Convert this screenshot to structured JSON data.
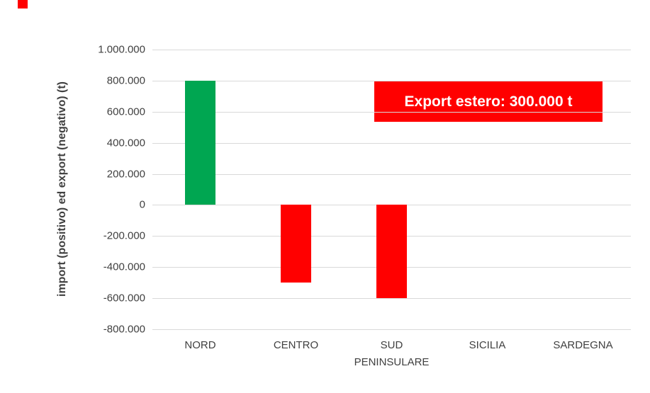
{
  "chart_data": {
    "type": "bar",
    "title": "",
    "xlabel": "",
    "ylabel": "import (positivo) ed export (negativo) (t)",
    "categories": [
      "NORD",
      "CENTRO",
      "SUD PENINSULARE",
      "SICILIA",
      "SARDEGNA"
    ],
    "values": [
      800000,
      -500000,
      -600000,
      0,
      0
    ],
    "bar_colors": [
      "#00a651",
      "#ff0000",
      "#ff0000",
      "#ff0000",
      "#ff0000"
    ],
    "ylim": [
      -800000,
      1000000
    ],
    "yticks": [
      1000000,
      800000,
      600000,
      400000,
      200000,
      0,
      -200000,
      -400000,
      -600000,
      -800000
    ],
    "ytick_labels": [
      "1.000.000",
      "800.000",
      "600.000",
      "400.000",
      "200.000",
      "0",
      "-200.000",
      "-400.000",
      "-600.000",
      "-800.000"
    ],
    "grid": true,
    "legend": "none",
    "annotation": {
      "text": "Export estero: 300.000 t",
      "bg_color": "#ff0000",
      "text_color": "#ffffff"
    },
    "colors": {
      "positive": "#00a651",
      "negative": "#ff0000",
      "gridline": "#d9d9d9",
      "label_text": "#404040"
    }
  }
}
